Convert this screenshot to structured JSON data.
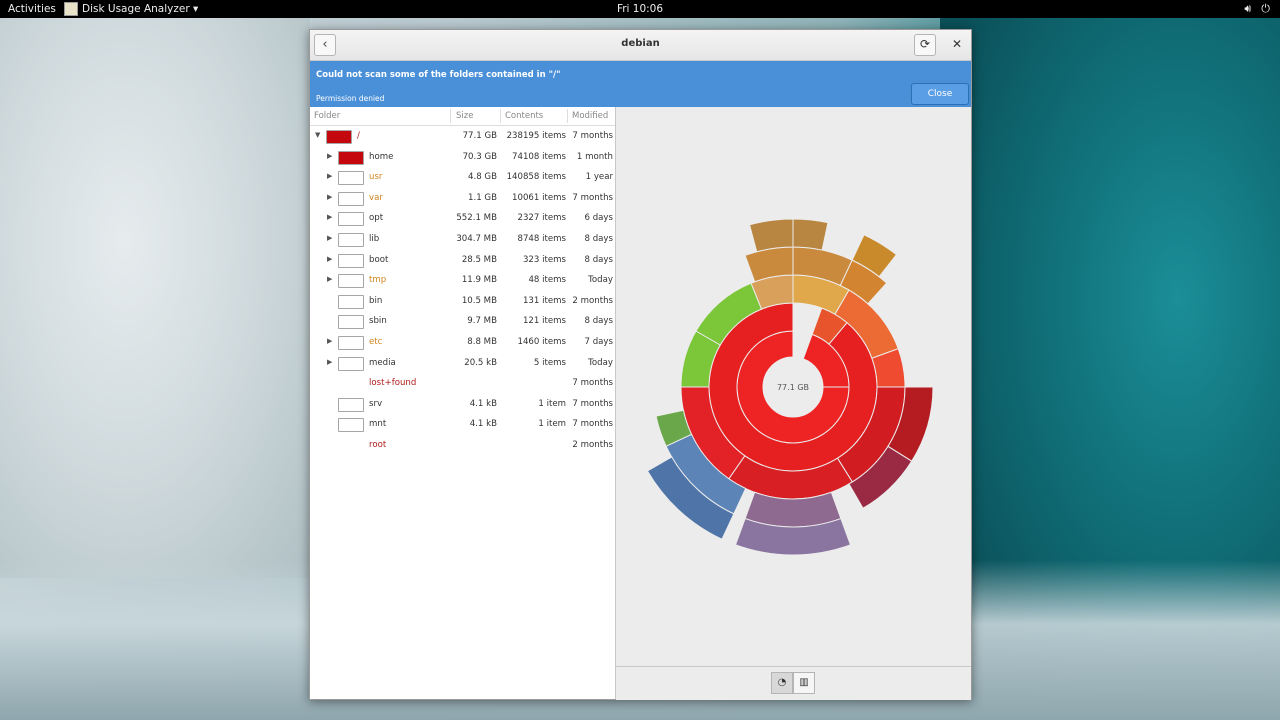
{
  "topbar": {
    "activities": "Activities",
    "app_name": "Disk Usage Analyzer ▾",
    "clock": "Fri 10:06",
    "icons": [
      "volume-icon",
      "power-icon"
    ]
  },
  "window": {
    "title": "debian",
    "infobar": {
      "title": "Could not scan some of the folders contained in \"/\"",
      "subtitle": "Permission denied",
      "close_label": "Close"
    },
    "columns": {
      "folder": "Folder",
      "size": "Size",
      "contents": "Contents",
      "modified": "Modified"
    },
    "rows": [
      {
        "name": "/",
        "size": "77.1 GB",
        "contents": "238195 items",
        "modified": "7 months",
        "expander": "expanded",
        "swatch": "#c4080d",
        "style": "red"
      },
      {
        "name": "home",
        "size": "70.3 GB",
        "contents": "74108 items",
        "modified": "1 month",
        "expander": "collapsed",
        "swatch": "#c4080d",
        "style": "normal"
      },
      {
        "name": "usr",
        "size": "4.8 GB",
        "contents": "140858 items",
        "modified": "1 year",
        "expander": "collapsed",
        "swatch": "#ffffff",
        "style": "orange"
      },
      {
        "name": "var",
        "size": "1.1 GB",
        "contents": "10061 items",
        "modified": "7 months",
        "expander": "collapsed",
        "swatch": "#ffffff",
        "style": "orange"
      },
      {
        "name": "opt",
        "size": "552.1 MB",
        "contents": "2327 items",
        "modified": "6 days",
        "expander": "collapsed",
        "swatch": "#ffffff",
        "style": "normal"
      },
      {
        "name": "lib",
        "size": "304.7 MB",
        "contents": "8748 items",
        "modified": "8 days",
        "expander": "collapsed",
        "swatch": "#ffffff",
        "style": "normal"
      },
      {
        "name": "boot",
        "size": "28.5 MB",
        "contents": "323 items",
        "modified": "8 days",
        "expander": "collapsed",
        "swatch": "#ffffff",
        "style": "normal"
      },
      {
        "name": "tmp",
        "size": "11.9 MB",
        "contents": "48 items",
        "modified": "Today",
        "expander": "collapsed",
        "swatch": "#ffffff",
        "style": "orange"
      },
      {
        "name": "bin",
        "size": "10.5 MB",
        "contents": "131 items",
        "modified": "2 months",
        "expander": "none",
        "swatch": "#ffffff",
        "style": "normal"
      },
      {
        "name": "sbin",
        "size": "9.7 MB",
        "contents": "121 items",
        "modified": "8 days",
        "expander": "none",
        "swatch": "#ffffff",
        "style": "normal"
      },
      {
        "name": "etc",
        "size": "8.8 MB",
        "contents": "1460 items",
        "modified": "7 days",
        "expander": "collapsed",
        "swatch": "#ffffff",
        "style": "orange"
      },
      {
        "name": "media",
        "size": "20.5 kB",
        "contents": "5 items",
        "modified": "Today",
        "expander": "collapsed",
        "swatch": "#ffffff",
        "style": "normal"
      },
      {
        "name": "lost+found",
        "size": "",
        "contents": "",
        "modified": "7 months",
        "expander": "none",
        "swatch": "",
        "style": "red"
      },
      {
        "name": "srv",
        "size": "4.1 kB",
        "contents": "1 item",
        "modified": "7 months",
        "expander": "none",
        "swatch": "#ffffff",
        "style": "normal"
      },
      {
        "name": "mnt",
        "size": "4.1 kB",
        "contents": "1 item",
        "modified": "7 months",
        "expander": "none",
        "swatch": "#ffffff",
        "style": "normal"
      },
      {
        "name": "root",
        "size": "",
        "contents": "",
        "modified": "2 months",
        "expander": "none",
        "swatch": "",
        "style": "red"
      }
    ],
    "chart": {
      "center_label": "77.1 GB",
      "view_buttons": [
        "rings-chart-icon",
        "treemap-chart-icon"
      ],
      "active_view": "rings-chart-icon"
    }
  },
  "colors": {
    "infobar": "#4a90d9",
    "red_text": "#b01c1c",
    "orange_text": "#d0861f"
  }
}
